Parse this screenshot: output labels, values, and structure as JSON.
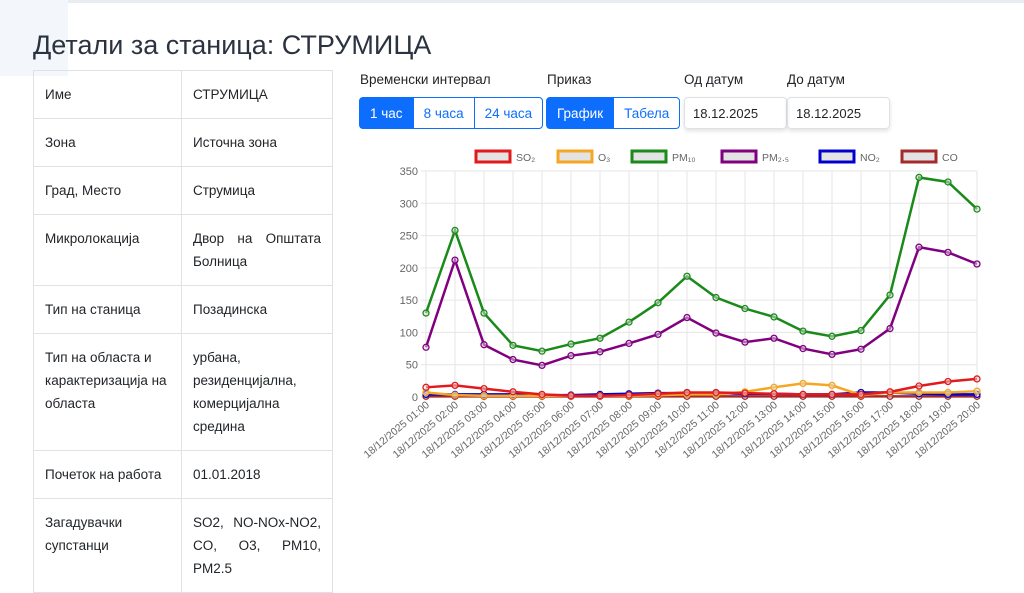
{
  "title": "Детали за станица: СТРУМИЦА",
  "details": [
    {
      "k": "Име",
      "v": "СТРУМИЦА"
    },
    {
      "k": "Зона",
      "v": "Источна зона"
    },
    {
      "k": "Град, Место",
      "v": "Струмица"
    },
    {
      "k": "Микролокација",
      "v": "Двор на Општата Болница"
    },
    {
      "k": "Тип на станица",
      "v": "Позадинска"
    },
    {
      "k": "Тип на областа и карактеризација на областа",
      "v": "урбана, резиденцијална, комерцијална средина"
    },
    {
      "k": "Почеток на работа",
      "v": "01.01.2018"
    },
    {
      "k": "Загадувачки супстанци",
      "v": "SO2, NO-NOx-NO2, CO, O3, PM10, PM2.5"
    }
  ],
  "controls": {
    "interval_label": "Временски интервал",
    "intervals": [
      "1 час",
      "8 часа",
      "24 часа"
    ],
    "view_label": "Приказ",
    "views": [
      "График",
      "Табела"
    ],
    "from_label": "Од датум",
    "from_value": "18.12.2025",
    "to_label": "До датум",
    "to_value": "18.12.2025"
  },
  "chart_data": {
    "type": "line",
    "x": [
      "18/12/2025 01:00",
      "18/12/2025 02:00",
      "18/12/2025 03:00",
      "18/12/2025 04:00",
      "18/12/2025 05:00",
      "18/12/2025 06:00",
      "18/12/2025 07:00",
      "18/12/2025 08:00",
      "18/12/2025 09:00",
      "18/12/2025 10:00",
      "18/12/2025 11:00",
      "18/12/2025 12:00",
      "18/12/2025 13:00",
      "18/12/2025 14:00",
      "18/12/2025 15:00",
      "18/12/2025 16:00",
      "18/12/2025 17:00",
      "18/12/2025 18:00",
      "18/12/2025 19:00",
      "18/12/2025 20:00"
    ],
    "ylim": [
      0,
      350
    ],
    "yticks": [
      0,
      50,
      100,
      150,
      200,
      250,
      300,
      350
    ],
    "legend": "top",
    "grid": true,
    "series": [
      {
        "name": "SO₂",
        "color": "#e31a1c",
        "values": [
          15,
          18,
          13,
          8,
          4,
          2,
          2,
          3,
          5,
          7,
          7,
          6,
          5,
          4,
          4,
          4,
          8,
          17,
          24,
          28
        ]
      },
      {
        "name": "O₃",
        "color": "#f5a623",
        "values": [
          7,
          3,
          2,
          2,
          2,
          2,
          2,
          2,
          3,
          4,
          4,
          8,
          15,
          21,
          18,
          3,
          7,
          7,
          7,
          9
        ]
      },
      {
        "name": "PM₁₀",
        "color": "#1a8a1a",
        "values": [
          130,
          258,
          130,
          80,
          71,
          82,
          91,
          116,
          146,
          187,
          154,
          137,
          124,
          102,
          94,
          103,
          158,
          340,
          333,
          291
        ]
      },
      {
        "name": "PM₂.₅",
        "color": "#800080",
        "values": [
          77,
          212,
          81,
          58,
          49,
          64,
          70,
          83,
          97,
          123,
          99,
          85,
          91,
          75,
          66,
          74,
          106,
          232,
          224,
          206
        ]
      },
      {
        "name": "NO₂",
        "color": "#0000cc",
        "values": [
          4,
          4,
          4,
          4,
          3,
          3,
          4,
          5,
          6,
          6,
          6,
          5,
          5,
          4,
          4,
          7,
          7,
          5,
          4,
          4
        ]
      },
      {
        "name": "CO",
        "color": "#a52a2a",
        "values": [
          1,
          1,
          1,
          1,
          1,
          1,
          1,
          1,
          1,
          1,
          1,
          1,
          1,
          1,
          1,
          1,
          1,
          1,
          1,
          1
        ]
      }
    ]
  }
}
